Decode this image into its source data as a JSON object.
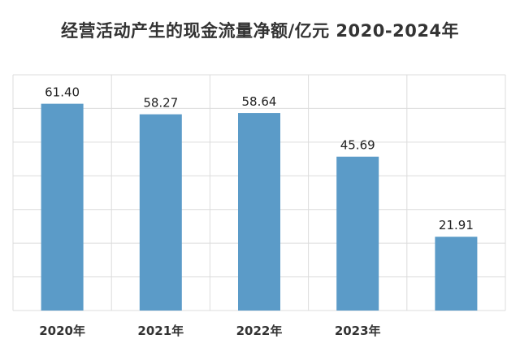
{
  "chart_data": {
    "type": "bar",
    "title": "经营活动产生的现金流量净额/亿元 2020-2024年",
    "categories": [
      "2020年",
      "2021年",
      "2022年",
      "2023年",
      ""
    ],
    "values": [
      61.4,
      58.27,
      58.64,
      45.69,
      21.91
    ],
    "value_labels": [
      "61.40",
      "58.27",
      "58.64",
      "45.69",
      "21.91"
    ],
    "ylim": [
      0,
      70
    ],
    "grid": true,
    "y_tick_labels_visible": false,
    "legend": "none",
    "bar_color": "#5b9bc8",
    "grid_color": "#dcdcdc"
  }
}
